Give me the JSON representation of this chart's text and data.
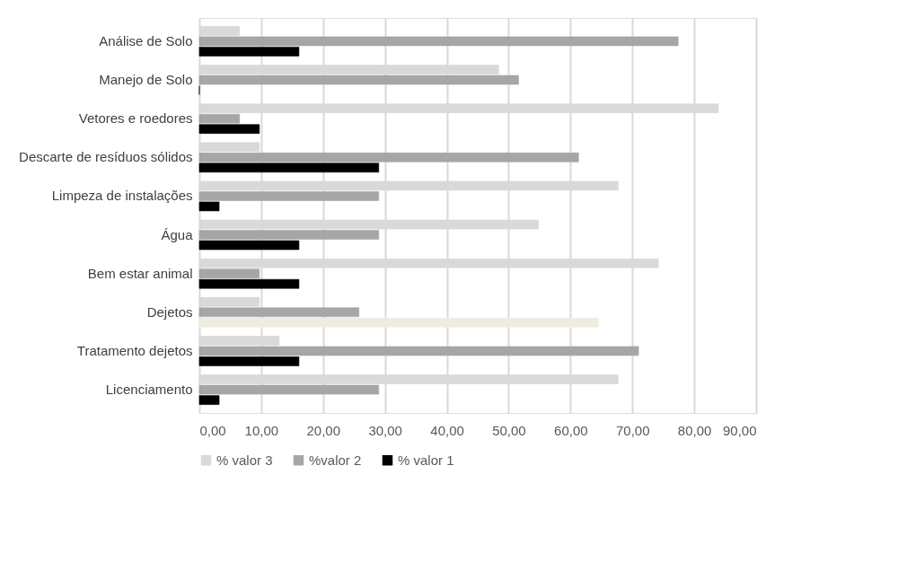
{
  "chart_data": {
    "type": "bar",
    "orientation": "horizontal",
    "categories": [
      "Análise de Solo",
      "Manejo de Solo",
      "Vetores e roedores",
      "Descarte de resíduos sólidos",
      "Limpeza de instalações",
      "Água",
      "Bem estar animal",
      "Dejetos",
      "Tratamento dejetos",
      "Licenciamento"
    ],
    "series": [
      {
        "name": "% valor 3",
        "color": "#d9d9d9",
        "values": [
          6.5,
          48.4,
          83.9,
          9.7,
          67.7,
          54.8,
          74.2,
          9.7,
          12.9,
          67.7
        ]
      },
      {
        "name": "%valor 2",
        "color": "#a6a6a6",
        "values": [
          77.4,
          51.6,
          6.5,
          61.3,
          29.0,
          29.0,
          9.7,
          25.8,
          71.0,
          29.0
        ]
      },
      {
        "name": "% valor 1",
        "color": "#000000",
        "colors": [
          "#000000",
          "#000000",
          "#000000",
          "#000000",
          "#000000",
          "#000000",
          "#000000",
          "#eeece1",
          "#000000",
          "#000000"
        ],
        "values": [
          16.1,
          0,
          9.7,
          29.0,
          3.2,
          16.1,
          16.1,
          64.5,
          16.1,
          3.2
        ]
      }
    ],
    "xlim": [
      0,
      90
    ],
    "xticks": [
      {
        "value": 0,
        "label": "0,00"
      },
      {
        "value": 10,
        "label": "10,00"
      },
      {
        "value": 20,
        "label": "20,00"
      },
      {
        "value": 30,
        "label": "30,00"
      },
      {
        "value": 40,
        "label": "40,00"
      },
      {
        "value": 50,
        "label": "50,00"
      },
      {
        "value": 60,
        "label": "60,00"
      },
      {
        "value": 70,
        "label": "70,00"
      },
      {
        "value": 80,
        "label": "80,00"
      },
      {
        "value": 90,
        "label": "90,00"
      }
    ],
    "grid": "x",
    "legend": "bottom"
  }
}
